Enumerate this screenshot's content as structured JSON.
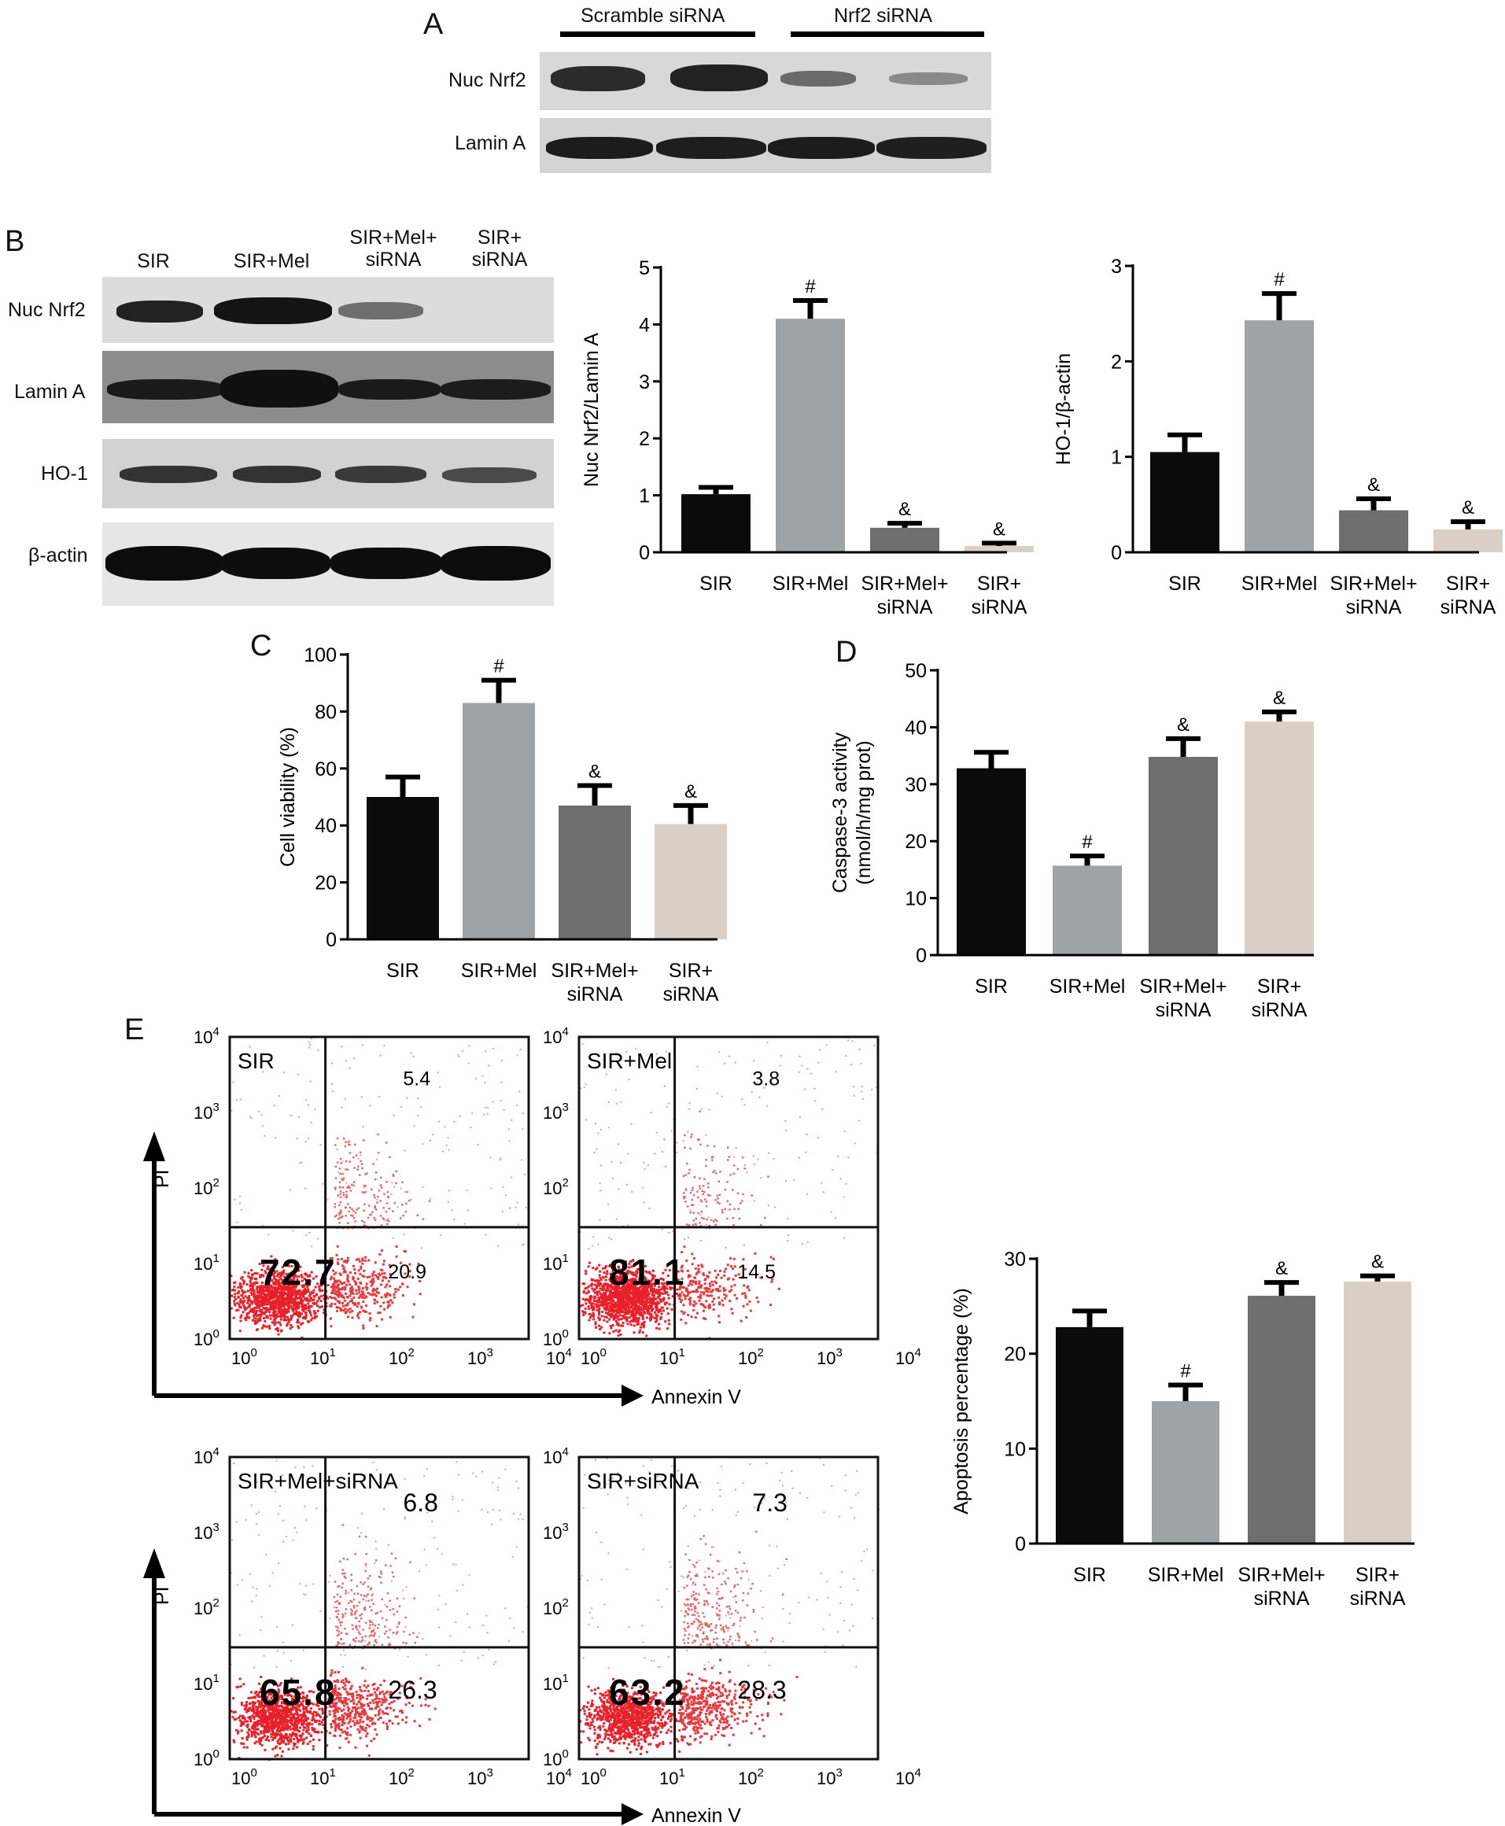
{
  "panel_letters": {
    "a": "A",
    "b": "B",
    "c": "C",
    "d": "D",
    "e": "E"
  },
  "blot_a": {
    "groups": [
      "Scramble siRNA",
      "Nrf2 siRNA"
    ],
    "rows": [
      "Nuc Nrf2",
      "Lamin A"
    ]
  },
  "blot_b": {
    "lanes": [
      "SIR",
      "SIR+Mel",
      "SIR+Mel+\nsiRNA",
      "SIR+\nsiRNA"
    ],
    "rows": [
      "Nuc Nrf2",
      "Lamin A",
      "HO-1",
      "β-actin"
    ]
  },
  "chart_data": [
    {
      "id": "nrf2",
      "type": "bar",
      "categories": [
        "SIR",
        "SIR+Mel",
        "SIR+Mel+\nsiRNA",
        "SIR+\nsiRNA"
      ],
      "values": [
        1.02,
        4.1,
        0.43,
        0.11
      ],
      "errors": [
        0.12,
        0.32,
        0.08,
        0.05
      ],
      "marks": [
        "",
        "#",
        "&",
        "&"
      ],
      "colors": [
        "#0b0b0b",
        "#9ea3a6",
        "#6e6e6e",
        "#d9cfc7"
      ],
      "ylabel": "Nuc Nrf2/Lamin A",
      "ylim": [
        0,
        5
      ],
      "yticks": [
        0,
        1,
        2,
        3,
        4,
        5
      ]
    },
    {
      "id": "ho1",
      "type": "bar",
      "categories": [
        "SIR",
        "SIR+Mel",
        "SIR+Mel+\nsiRNA",
        "SIR+\nsiRNA"
      ],
      "values": [
        1.05,
        2.43,
        0.44,
        0.24
      ],
      "errors": [
        0.18,
        0.28,
        0.12,
        0.08
      ],
      "marks": [
        "",
        "#",
        "&",
        "&"
      ],
      "colors": [
        "#0b0b0b",
        "#9ea3a6",
        "#6e6e6e",
        "#d9cfc7"
      ],
      "ylabel": "HO-1/β-actin",
      "ylim": [
        0,
        3
      ],
      "yticks": [
        0,
        1,
        2,
        3
      ]
    },
    {
      "id": "viability",
      "type": "bar",
      "categories": [
        "SIR",
        "SIR+Mel",
        "SIR+Mel+\nsiRNA",
        "SIR+\nsiRNA"
      ],
      "values": [
        50,
        83,
        47,
        40.5
      ],
      "errors": [
        7,
        8,
        7,
        6.5
      ],
      "marks": [
        "",
        "#",
        "&",
        "&"
      ],
      "colors": [
        "#0b0b0b",
        "#9ea3a6",
        "#6e6e6e",
        "#d9cfc7"
      ],
      "ylabel": "Cell viability (%)",
      "ylim": [
        0,
        100
      ],
      "yticks": [
        0,
        20,
        40,
        60,
        80,
        100
      ]
    },
    {
      "id": "caspase",
      "type": "bar",
      "categories": [
        "SIR",
        "SIR+Mel",
        "SIR+Mel+\nsiRNA",
        "SIR+\nsiRNA"
      ],
      "values": [
        32.8,
        15.7,
        34.8,
        41.0
      ],
      "errors": [
        2.8,
        1.7,
        3.2,
        1.7
      ],
      "marks": [
        "",
        "#",
        "&",
        "&"
      ],
      "colors": [
        "#0b0b0b",
        "#9ea3a6",
        "#6e6e6e",
        "#d9cfc7"
      ],
      "ylabel": "Caspase-3 activity\n(nmol/h/mg prot)",
      "ylim": [
        0,
        50
      ],
      "yticks": [
        0,
        10,
        20,
        30,
        40,
        50
      ]
    },
    {
      "id": "apoptosis",
      "type": "bar",
      "categories": [
        "SIR",
        "SIR+Mel",
        "SIR+Mel+\nsiRNA",
        "SIR+\nsiRNA"
      ],
      "values": [
        22.8,
        15.0,
        26.1,
        27.6
      ],
      "errors": [
        1.7,
        1.7,
        1.4,
        0.6
      ],
      "marks": [
        "",
        "#",
        "&",
        "&"
      ],
      "colors": [
        "#0b0b0b",
        "#9ea3a6",
        "#6e6e6e",
        "#d9cfc7"
      ],
      "ylabel": "Apoptosis percentage (%)",
      "ylim": [
        0,
        30
      ],
      "yticks": [
        0,
        10,
        20,
        30
      ]
    }
  ],
  "flow": {
    "xlabel": "Annexin V",
    "ylabel": "PI",
    "tick_bases": [
      "10",
      "10",
      "10",
      "10",
      "10"
    ],
    "tick_exps": [
      "0",
      "1",
      "2",
      "3",
      "4"
    ],
    "plots": [
      {
        "title": "SIR",
        "q_live": "72.7",
        "q_early": "20.9",
        "q_late": "5.4"
      },
      {
        "title": "SIR+Mel",
        "q_live": "81.1",
        "q_early": "14.5",
        "q_late": "3.8"
      },
      {
        "title": "SIR+Mel+siRNA",
        "q_live": "65.8",
        "q_early": "26.3",
        "q_late": "6.8"
      },
      {
        "title": "SIR+siRNA",
        "q_live": "63.2",
        "q_early": "28.3",
        "q_late": "7.3"
      }
    ]
  }
}
